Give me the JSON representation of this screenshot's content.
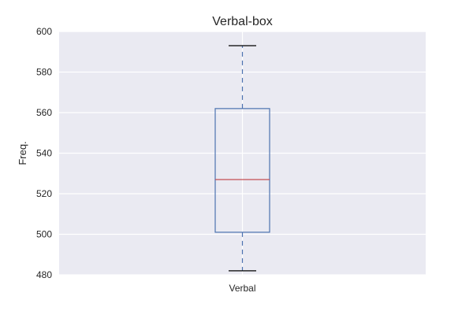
{
  "chart_data": {
    "type": "box",
    "title": "Verbal-box",
    "xlabel": "",
    "ylabel": "Freq.",
    "ylim": [
      480,
      600
    ],
    "y_ticks": [
      480,
      500,
      520,
      540,
      560,
      580,
      600
    ],
    "x_ticks": [
      "Verbal"
    ],
    "grid": true,
    "boxes": [
      {
        "category": "Verbal",
        "whisker_low": 482,
        "q1": 501,
        "median": 527,
        "q3": 562,
        "whisker_high": 593
      }
    ],
    "colors": {
      "plot_background": "#eaeaf2",
      "grid": "#ffffff",
      "box": "#4c72b0",
      "median": "#c44e52",
      "cap": "#000000",
      "text": "#262626"
    }
  }
}
